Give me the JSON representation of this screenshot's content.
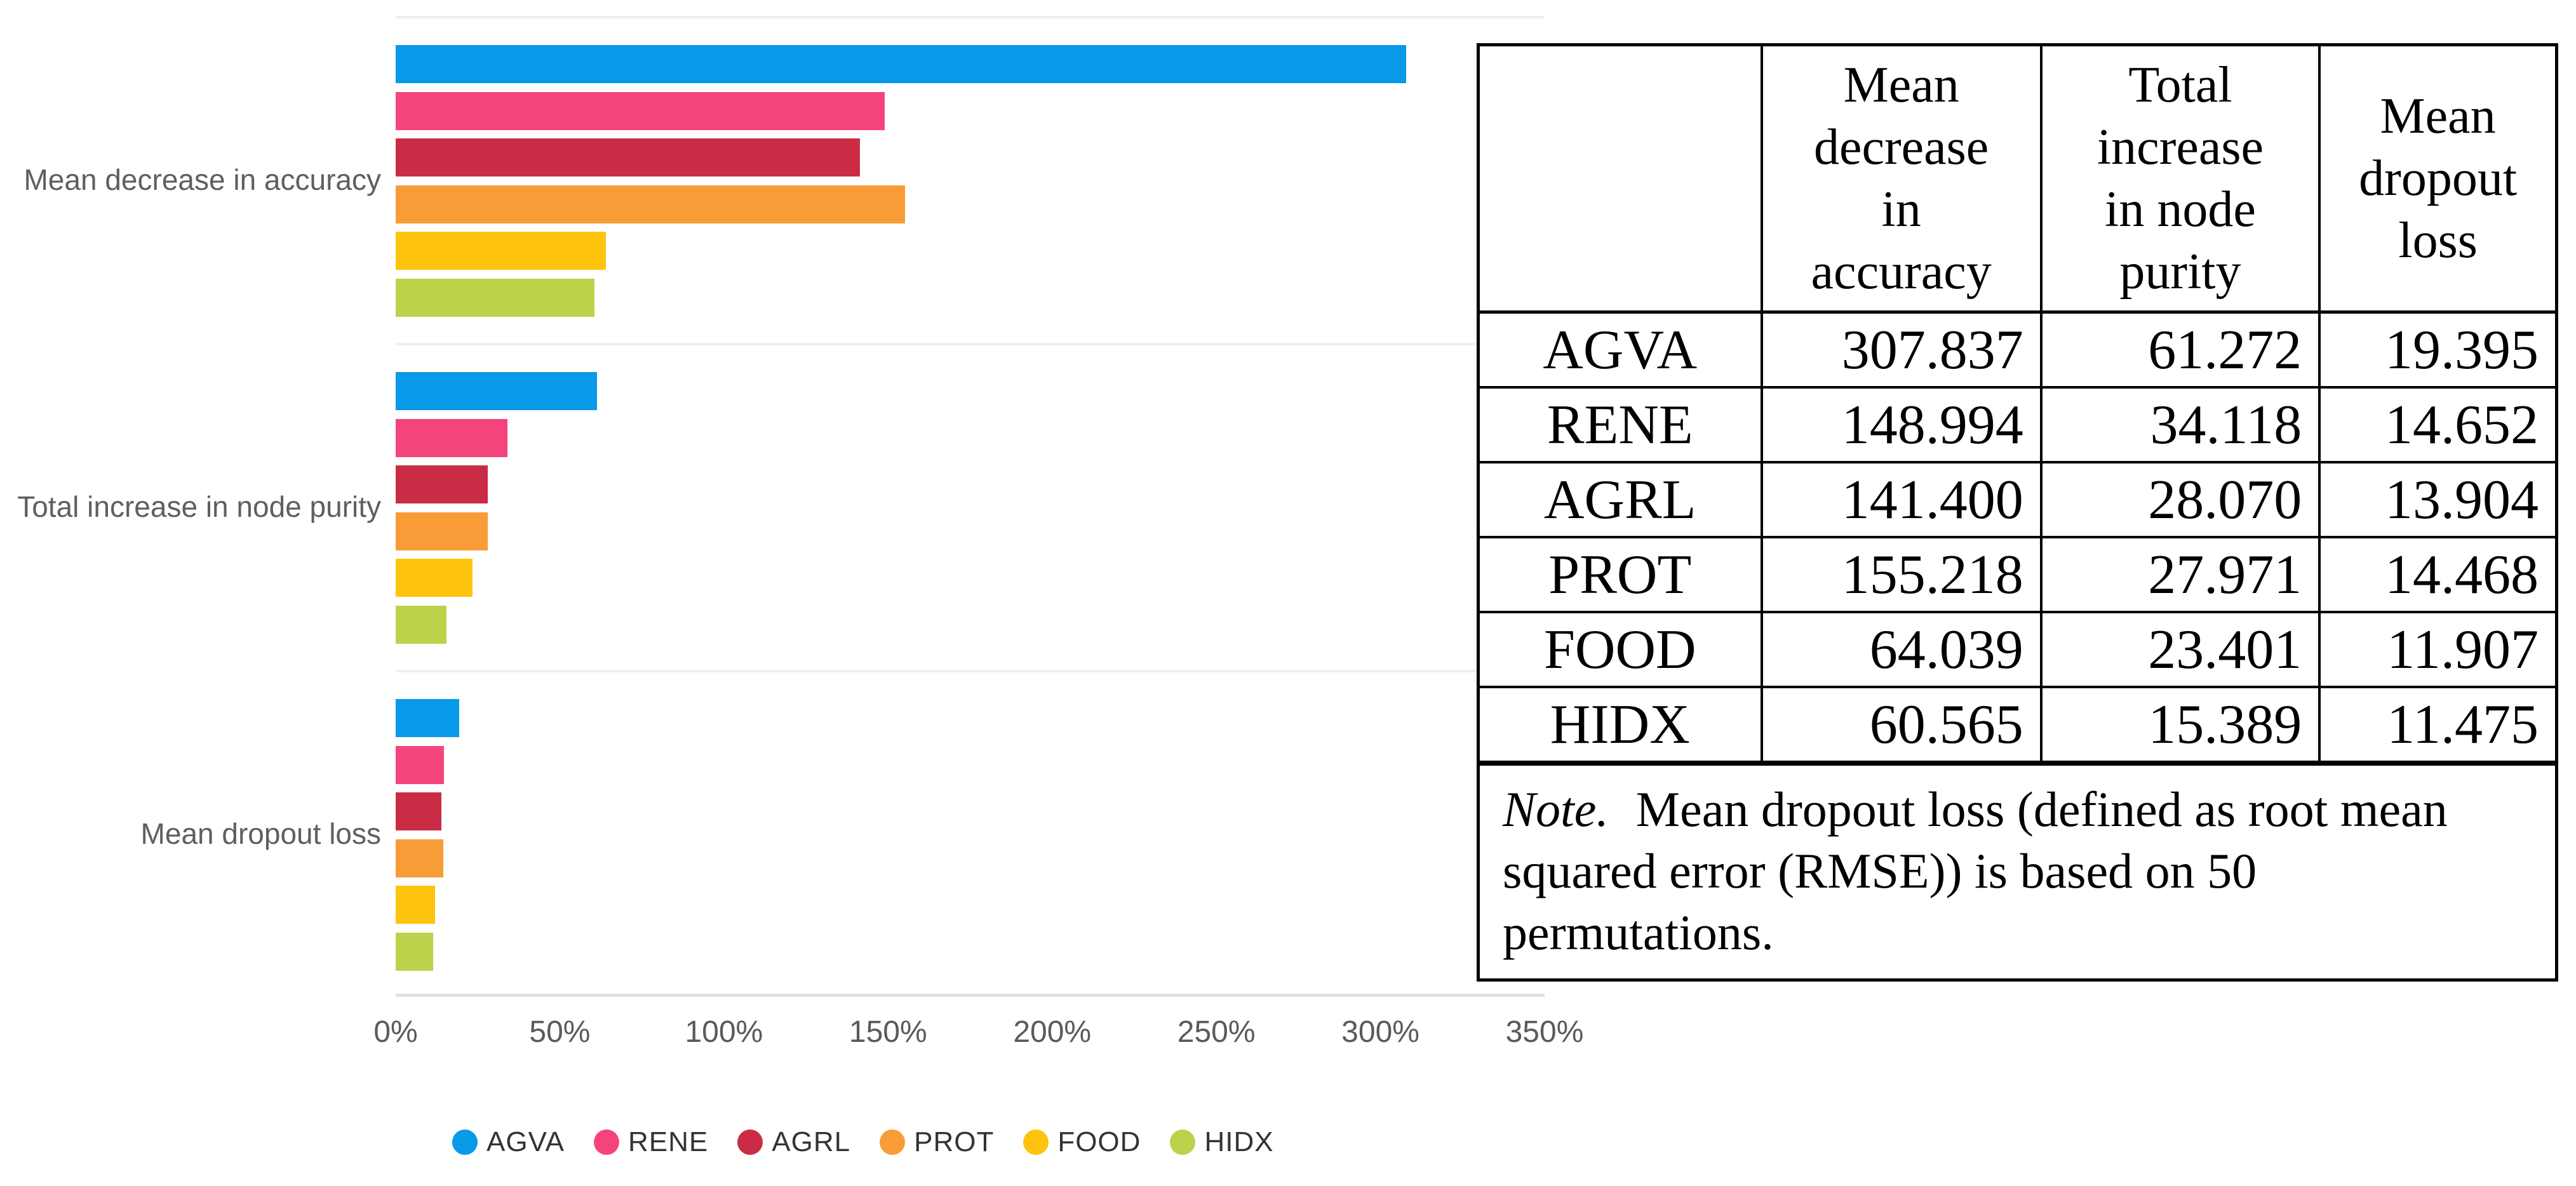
{
  "chart_data": {
    "type": "bar",
    "orientation": "horizontal",
    "title": "",
    "xlabel": "",
    "ylabel": "",
    "categories": [
      "Mean decrease in accuracy",
      "Total increase in node purity",
      "Mean dropout loss"
    ],
    "series": [
      {
        "name": "AGVA",
        "color": "#0899e8",
        "values": [
          307.837,
          61.272,
          19.395
        ]
      },
      {
        "name": "RENE",
        "color": "#f5447c",
        "values": [
          148.994,
          34.118,
          14.652
        ]
      },
      {
        "name": "AGRL",
        "color": "#cb2c45",
        "values": [
          141.4,
          28.07,
          13.904
        ]
      },
      {
        "name": "PROT",
        "color": "#f89c38",
        "values": [
          155.218,
          27.971,
          14.468
        ]
      },
      {
        "name": "FOOD",
        "color": "#fec40d",
        "values": [
          64.039,
          23.401,
          11.907
        ]
      },
      {
        "name": "HIDX",
        "color": "#bcd24b",
        "values": [
          60.565,
          15.389,
          11.475
        ]
      }
    ],
    "x_ticks": [
      "0%",
      "50%",
      "100%",
      "150%",
      "200%",
      "250%",
      "300%",
      "350%"
    ],
    "xlim": [
      0,
      350
    ],
    "unit": "%",
    "grid": "light horizontal separator lines between category groups, light bottom axis line, no vertical gridlines",
    "legend_position": "bottom-left",
    "legend": [
      "AGVA",
      "RENE",
      "AGRL",
      "PROT",
      "FOOD",
      "HIDX"
    ]
  },
  "table": {
    "header_cells": [
      [
        ""
      ],
      [
        "Mean",
        "decrease",
        "in",
        "accuracy"
      ],
      [
        "Total",
        "increase",
        "in node",
        "purity"
      ],
      [
        "Mean",
        "dropout",
        "loss"
      ]
    ],
    "rows": [
      {
        "label": "AGVA",
        "values": [
          "307.837",
          "61.272",
          "19.395"
        ]
      },
      {
        "label": "RENE",
        "values": [
          "148.994",
          "34.118",
          "14.652"
        ]
      },
      {
        "label": "AGRL",
        "values": [
          "141.400",
          "28.070",
          "13.904"
        ]
      },
      {
        "label": "PROT",
        "values": [
          "155.218",
          "27.971",
          "14.468"
        ]
      },
      {
        "label": "FOOD",
        "values": [
          "64.039",
          "23.401",
          "11.907"
        ]
      },
      {
        "label": "HIDX",
        "values": [
          "60.565",
          "15.389",
          "11.475"
        ]
      }
    ],
    "note_label": "Note.",
    "note_text": "Mean dropout loss (defined as root mean squared error (RMSE)) is based on 50 permutations."
  },
  "colors": {
    "background": "#ffffff",
    "category_text": "#5f5f5f",
    "axis_text": "#5a5a5a",
    "legend_text": "#333333",
    "grid_line": "#efefef",
    "axis_line": "#e0e0e0",
    "table_border": "#000000",
    "table_text": "#000000"
  }
}
